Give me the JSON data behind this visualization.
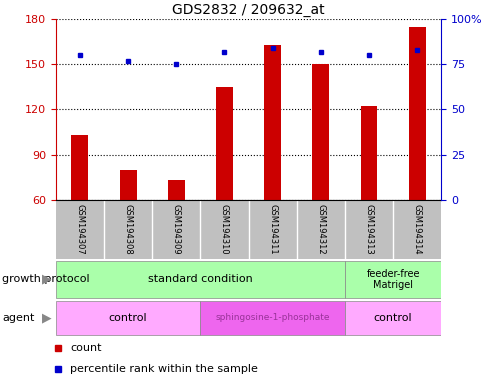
{
  "title": "GDS2832 / 209632_at",
  "samples": [
    "GSM194307",
    "GSM194308",
    "GSM194309",
    "GSM194310",
    "GSM194311",
    "GSM194312",
    "GSM194313",
    "GSM194314"
  ],
  "bar_values": [
    103,
    80,
    73,
    135,
    163,
    150,
    122,
    175
  ],
  "percentile_values": [
    80,
    77,
    75,
    82,
    84,
    82,
    80,
    83
  ],
  "ylim_left": [
    60,
    180
  ],
  "yticks_left": [
    60,
    90,
    120,
    150,
    180
  ],
  "ylim_right": [
    0,
    100
  ],
  "yticks_right": [
    0,
    25,
    50,
    75,
    100
  ],
  "bar_color": "#cc0000",
  "dot_color": "#0000cc",
  "bg_sample_row": "#c0c0c0",
  "bg_growth_std": "#aaffaa",
  "bg_growth_feeder": "#aaffaa",
  "bg_agent_control": "#ffaaff",
  "bg_agent_sphingo": "#ee66ee",
  "sphingo_text_color": "#993399",
  "growth_std_count": 6,
  "growth_feeder_count": 2,
  "agent_ctrl1_count": 3,
  "agent_sphingo_count": 3,
  "agent_ctrl2_count": 2,
  "legend_count_label": "count",
  "legend_pct_label": "percentile rank within the sample",
  "ylabel_left_color": "#cc0000",
  "ylabel_right_color": "#0000cc",
  "label_fontsize": 8,
  "tick_fontsize": 8,
  "sample_fontsize": 6,
  "annotation_fontsize": 8
}
